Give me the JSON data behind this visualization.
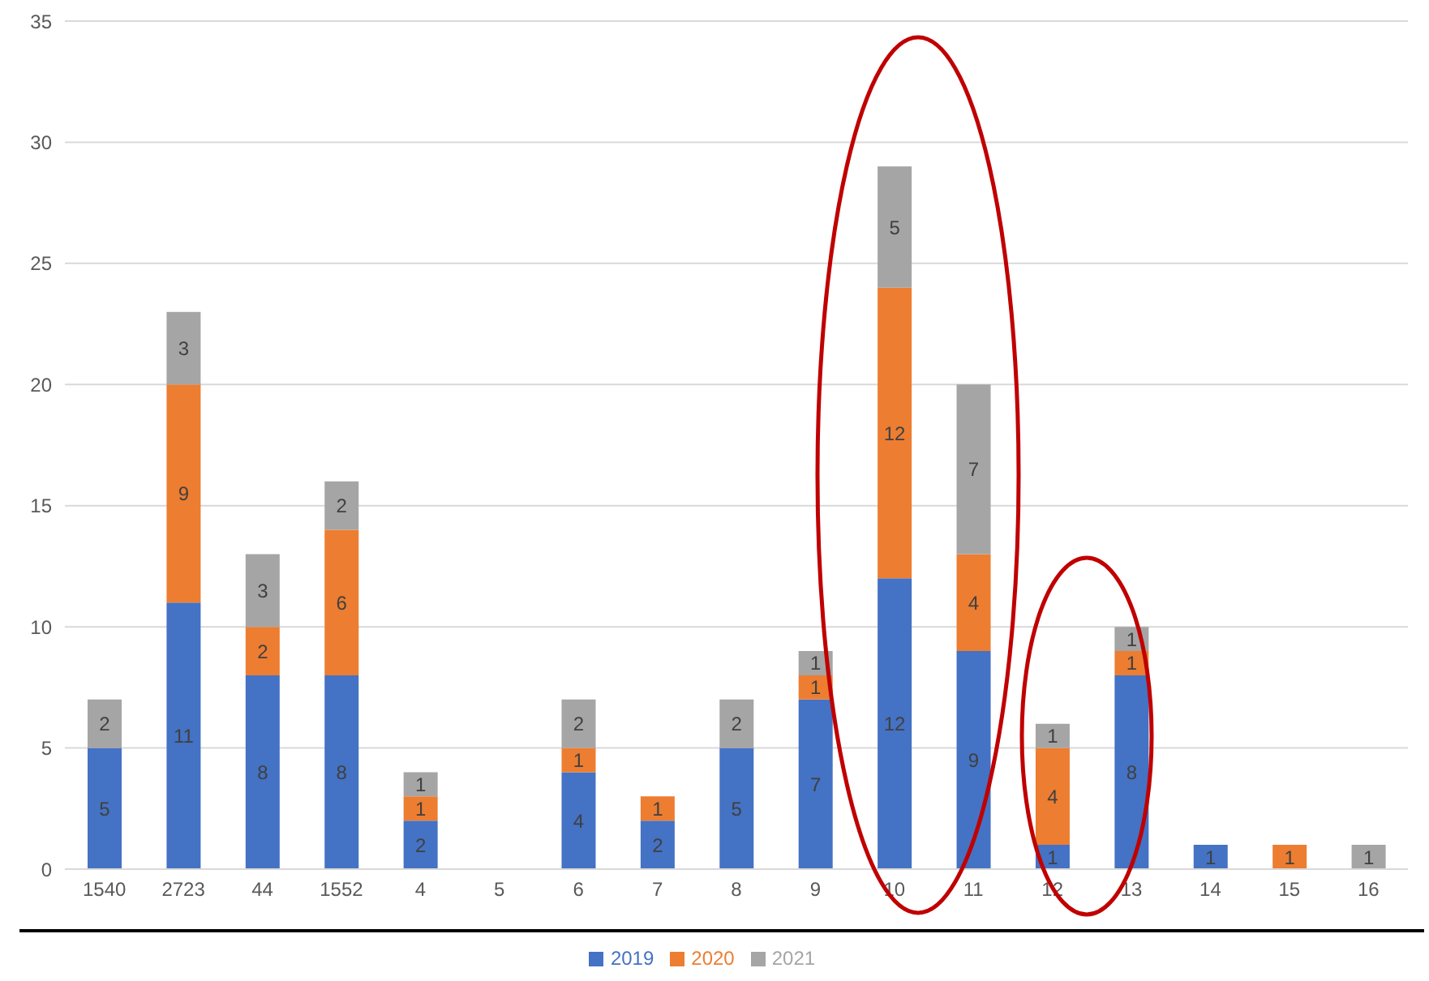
{
  "chart_data": {
    "type": "bar",
    "stacked": true,
    "categories": [
      "1540",
      "2723",
      "44",
      "1552",
      "4",
      "5",
      "6",
      "7",
      "8",
      "9",
      "10",
      "11",
      "12",
      "13",
      "14",
      "15",
      "16"
    ],
    "series": [
      {
        "name": "2019",
        "color": "#4472c4",
        "values": [
          5,
          11,
          8,
          8,
          2,
          null,
          4,
          2,
          5,
          7,
          12,
          9,
          1,
          8,
          1,
          null,
          null
        ]
      },
      {
        "name": "2020",
        "color": "#ed7d31",
        "values": [
          null,
          9,
          2,
          6,
          1,
          null,
          1,
          1,
          null,
          1,
          12,
          4,
          4,
          1,
          null,
          1,
          null
        ]
      },
      {
        "name": "2021",
        "color": "#a5a5a5",
        "values": [
          2,
          3,
          3,
          2,
          1,
          null,
          2,
          null,
          2,
          1,
          5,
          7,
          1,
          1,
          null,
          null,
          1
        ]
      }
    ],
    "ylim": [
      0,
      35
    ],
    "yticks": [
      0,
      5,
      10,
      15,
      20,
      25,
      30,
      35
    ],
    "grid": "y",
    "legend": "bottom",
    "data_labels": true
  }
}
